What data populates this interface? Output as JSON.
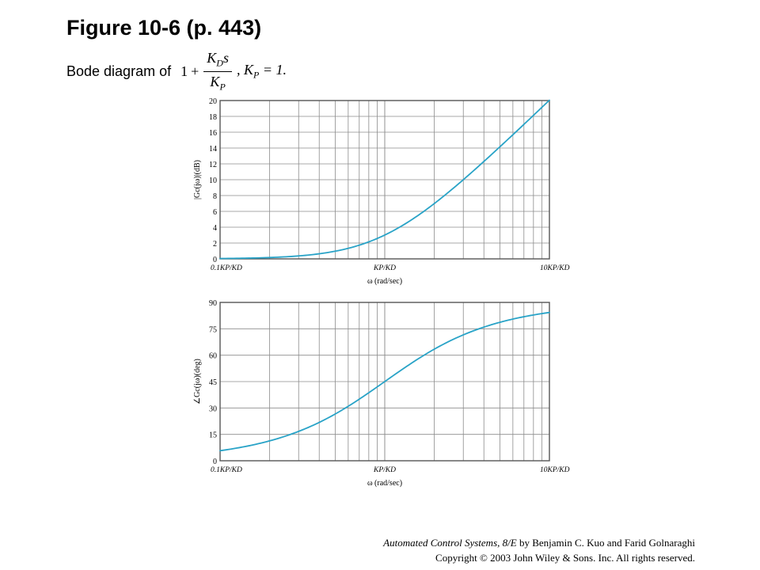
{
  "header": {
    "title": "Figure 10-6  (p. 443)",
    "subtitle": "Bode diagram of",
    "formula": {
      "one": "1",
      "plus": "+",
      "numerator": "K",
      "numerator_sub": "D",
      "numerator_var": "s",
      "denominator": "K",
      "denominator_sub": "P",
      "condition": ", K",
      "condition_sub": "P",
      "condition_rest": " = 1."
    }
  },
  "chart_data": [
    {
      "type": "line",
      "title": "",
      "xlabel": "ω (rad/sec)",
      "ylabel": "|Gc(jω)|(dB)",
      "xscale": "log",
      "xlim": [
        0.1,
        10
      ],
      "ylim": [
        0,
        20
      ],
      "yticks": [
        0,
        2,
        4,
        6,
        8,
        10,
        12,
        14,
        16,
        18,
        20
      ],
      "xtick_labels": [
        "0.1KP/KD",
        "KP/KD",
        "10KP/KD"
      ],
      "grid": true,
      "color": "#29a3c7",
      "x": [
        0.1,
        0.15,
        0.2,
        0.3,
        0.4,
        0.5,
        0.7,
        1.0,
        1.5,
        2,
        3,
        4,
        5,
        7,
        10
      ],
      "y": [
        0.04,
        0.1,
        0.17,
        0.37,
        0.64,
        0.97,
        1.72,
        3.01,
        5.11,
        6.99,
        10.0,
        12.3,
        14.15,
        17.0,
        20.04
      ]
    },
    {
      "type": "line",
      "title": "",
      "xlabel": "ω (rad/sec)",
      "ylabel": "∠Gc(jω)(deg)",
      "xscale": "log",
      "xlim": [
        0.1,
        10
      ],
      "ylim": [
        0,
        90
      ],
      "yticks": [
        0,
        15,
        30,
        45,
        60,
        75,
        90
      ],
      "xtick_labels": [
        "0.1KP/KD",
        "KP/KD",
        "10KP/KD"
      ],
      "grid": true,
      "color": "#29a3c7",
      "x": [
        0.1,
        0.15,
        0.2,
        0.3,
        0.4,
        0.5,
        0.7,
        1.0,
        1.5,
        2,
        3,
        4,
        5,
        7,
        10
      ],
      "y": [
        5.7,
        8.5,
        11.3,
        16.7,
        21.8,
        26.6,
        35.0,
        45.0,
        56.3,
        63.4,
        71.6,
        76.0,
        78.7,
        81.9,
        84.3
      ]
    }
  ],
  "footer": {
    "book": "Automated Control Systems, 8/E",
    "authors": " by Benjamin C. Kuo and Farid Golnaraghi",
    "copyright": "Copyright © 2003 John Wiley  & Sons. Inc. All rights reserved."
  }
}
